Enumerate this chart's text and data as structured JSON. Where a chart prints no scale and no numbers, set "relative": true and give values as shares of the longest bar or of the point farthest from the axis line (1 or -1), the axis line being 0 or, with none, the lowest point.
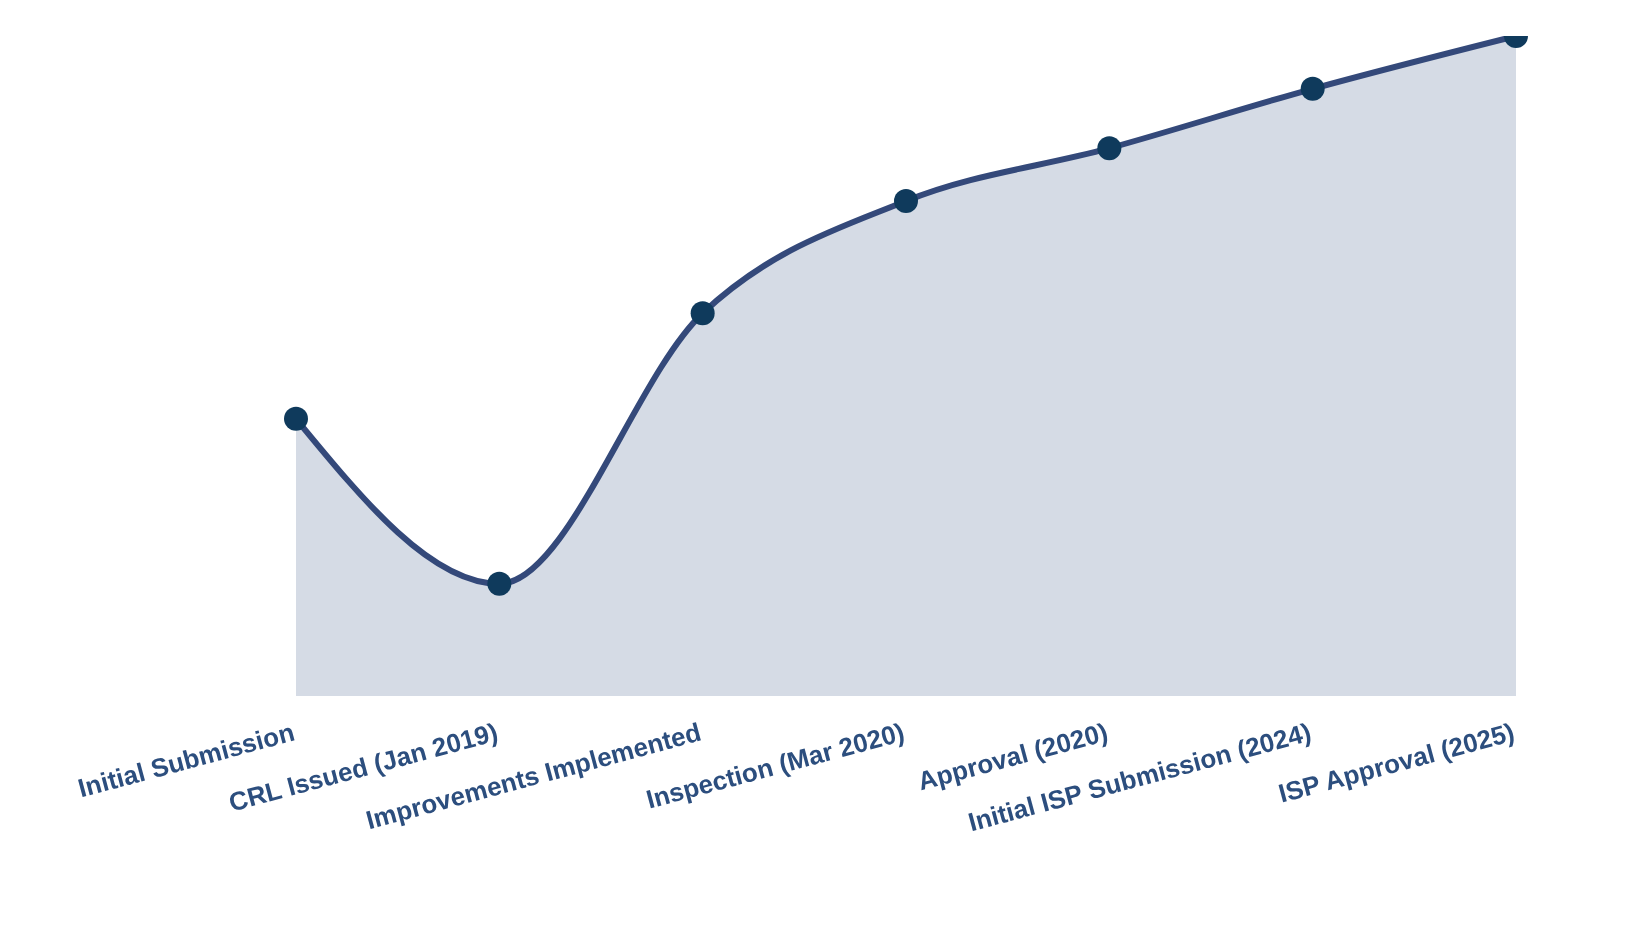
{
  "chart_data": {
    "type": "area",
    "relative": true,
    "categories": [
      "Initial Submission",
      "CRL Issued (Jan 2019)",
      "Improvements Implemented",
      "Inspection (Mar 2020)",
      "Approval (2020)",
      "Initial ISP Submission (2024)",
      "ISP Approval (2025)"
    ],
    "series": [
      {
        "color": "#34497a",
        "values": [
          0.42,
          0.17,
          0.58,
          0.75,
          0.83,
          0.92,
          1
        ]
      }
    ],
    "marker": "circle",
    "grid": false,
    "legend": false
  }
}
